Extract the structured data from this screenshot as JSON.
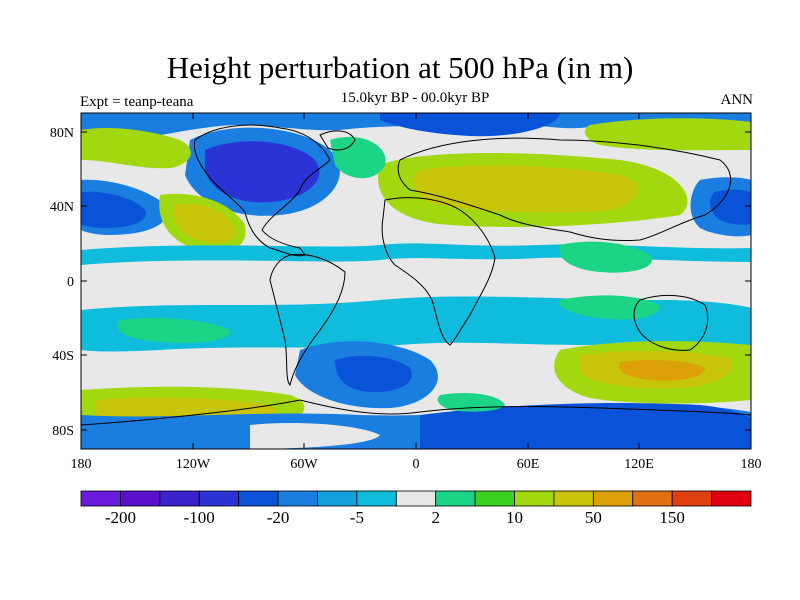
{
  "title": "Height perturbation at 500 hPa (in m)",
  "subtitle": "15.0kyr BP - 00.0kyr BP",
  "left_label": "Expt = teanp-teana",
  "right_label": "ANN",
  "lat_labels": [
    "80N",
    "40N",
    "0",
    "40S",
    "80S"
  ],
  "lon_labels": [
    "180",
    "120W",
    "60W",
    "0",
    "60E",
    "120E",
    "180"
  ],
  "colorbar": {
    "colors": [
      "#6a1ad8",
      "#5a10cc",
      "#3a22cc",
      "#2a34d6",
      "#0a52d8",
      "#1a7ee0",
      "#12a0dc",
      "#10bcdc",
      "#e8e8e8",
      "#1cd486",
      "#3cd020",
      "#a2d810",
      "#c8c40a",
      "#dca008",
      "#e07010",
      "#e04010",
      "#e00010"
    ],
    "labels": [
      "-200",
      "-100",
      "-20",
      "-5",
      "2",
      "10",
      "50",
      "150"
    ]
  },
  "map_palette": {
    "neutral": "#e8e8e8",
    "blue_light": "#10bcdc",
    "blue_mid": "#1a7ee0",
    "blue_dark": "#0a52d8",
    "blue_deep": "#2a34d6",
    "green": "#1cd486",
    "green_bright": "#3cd020",
    "yellow_green": "#a2d810",
    "yellow": "#c8c40a",
    "land_outline": "#000000"
  }
}
